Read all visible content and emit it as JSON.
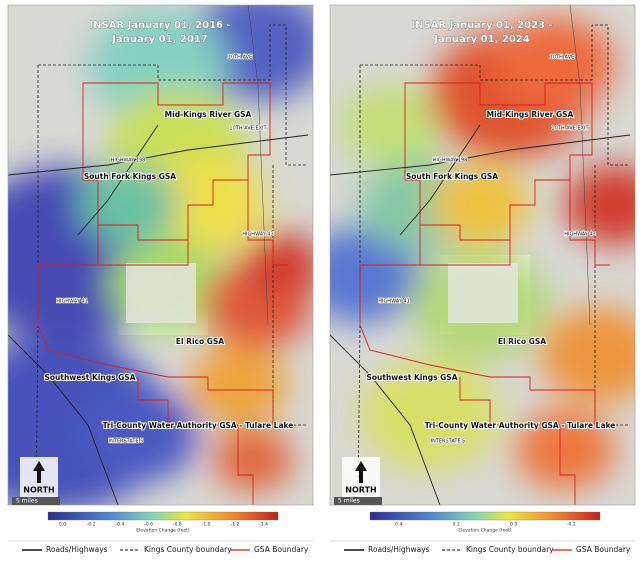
{
  "panels": [
    {
      "title": [
        "INSAR January 01, 2016 -",
        "January 01, 2017"
      ],
      "labels": [
        "10TH AVE",
        "Mid-Kings River GSA",
        "10TH AVE EXIT",
        "HIGHWAY 198",
        "South Fork Kings GSA",
        "HIGHWAY 43",
        "HIGHWAY 41",
        "El Rico GSA",
        "Southwest Kings GSA",
        "Tri-County Water Authority GSA - Tulare Lake",
        "INTERSTATE 5"
      ],
      "north": "NORTH",
      "scale": "5 miles",
      "colorbar": {
        "label": "Elevation Change (feet)",
        "ticks": [
          "0.0",
          "-0.2",
          "-0.4",
          "-0.6",
          "-0.8",
          "-1.0",
          "-1.2",
          "-1.4"
        ]
      },
      "legend": [
        "Roads/Highways",
        "Kings County boundary",
        "GSA Boundary"
      ]
    },
    {
      "title": [
        "INSAR January 01, 2023 -",
        "January 01, 2024"
      ],
      "labels": [
        "10TH AVE",
        "Mid-Kings River GSA",
        "10TH AVE EXIT",
        "HIGHWAY 198",
        "South Fork Kings GSA",
        "HIGHWAY 43",
        "HIGHWAY 41",
        "El Rico GSA",
        "Southwest Kings GSA",
        "Tri-County Water Authority GSA - Tulare Lake",
        "INTERSTATE 5"
      ],
      "north": "NORTH",
      "scale": "5 miles",
      "colorbar": {
        "label": "Elevation Change (feet)",
        "ticks": [
          "0.4",
          "0.2",
          "0.0",
          "-0.2"
        ]
      },
      "legend": [
        "Roads/Highways",
        "Kings County boundary",
        "GSA Boundary"
      ]
    }
  ]
}
